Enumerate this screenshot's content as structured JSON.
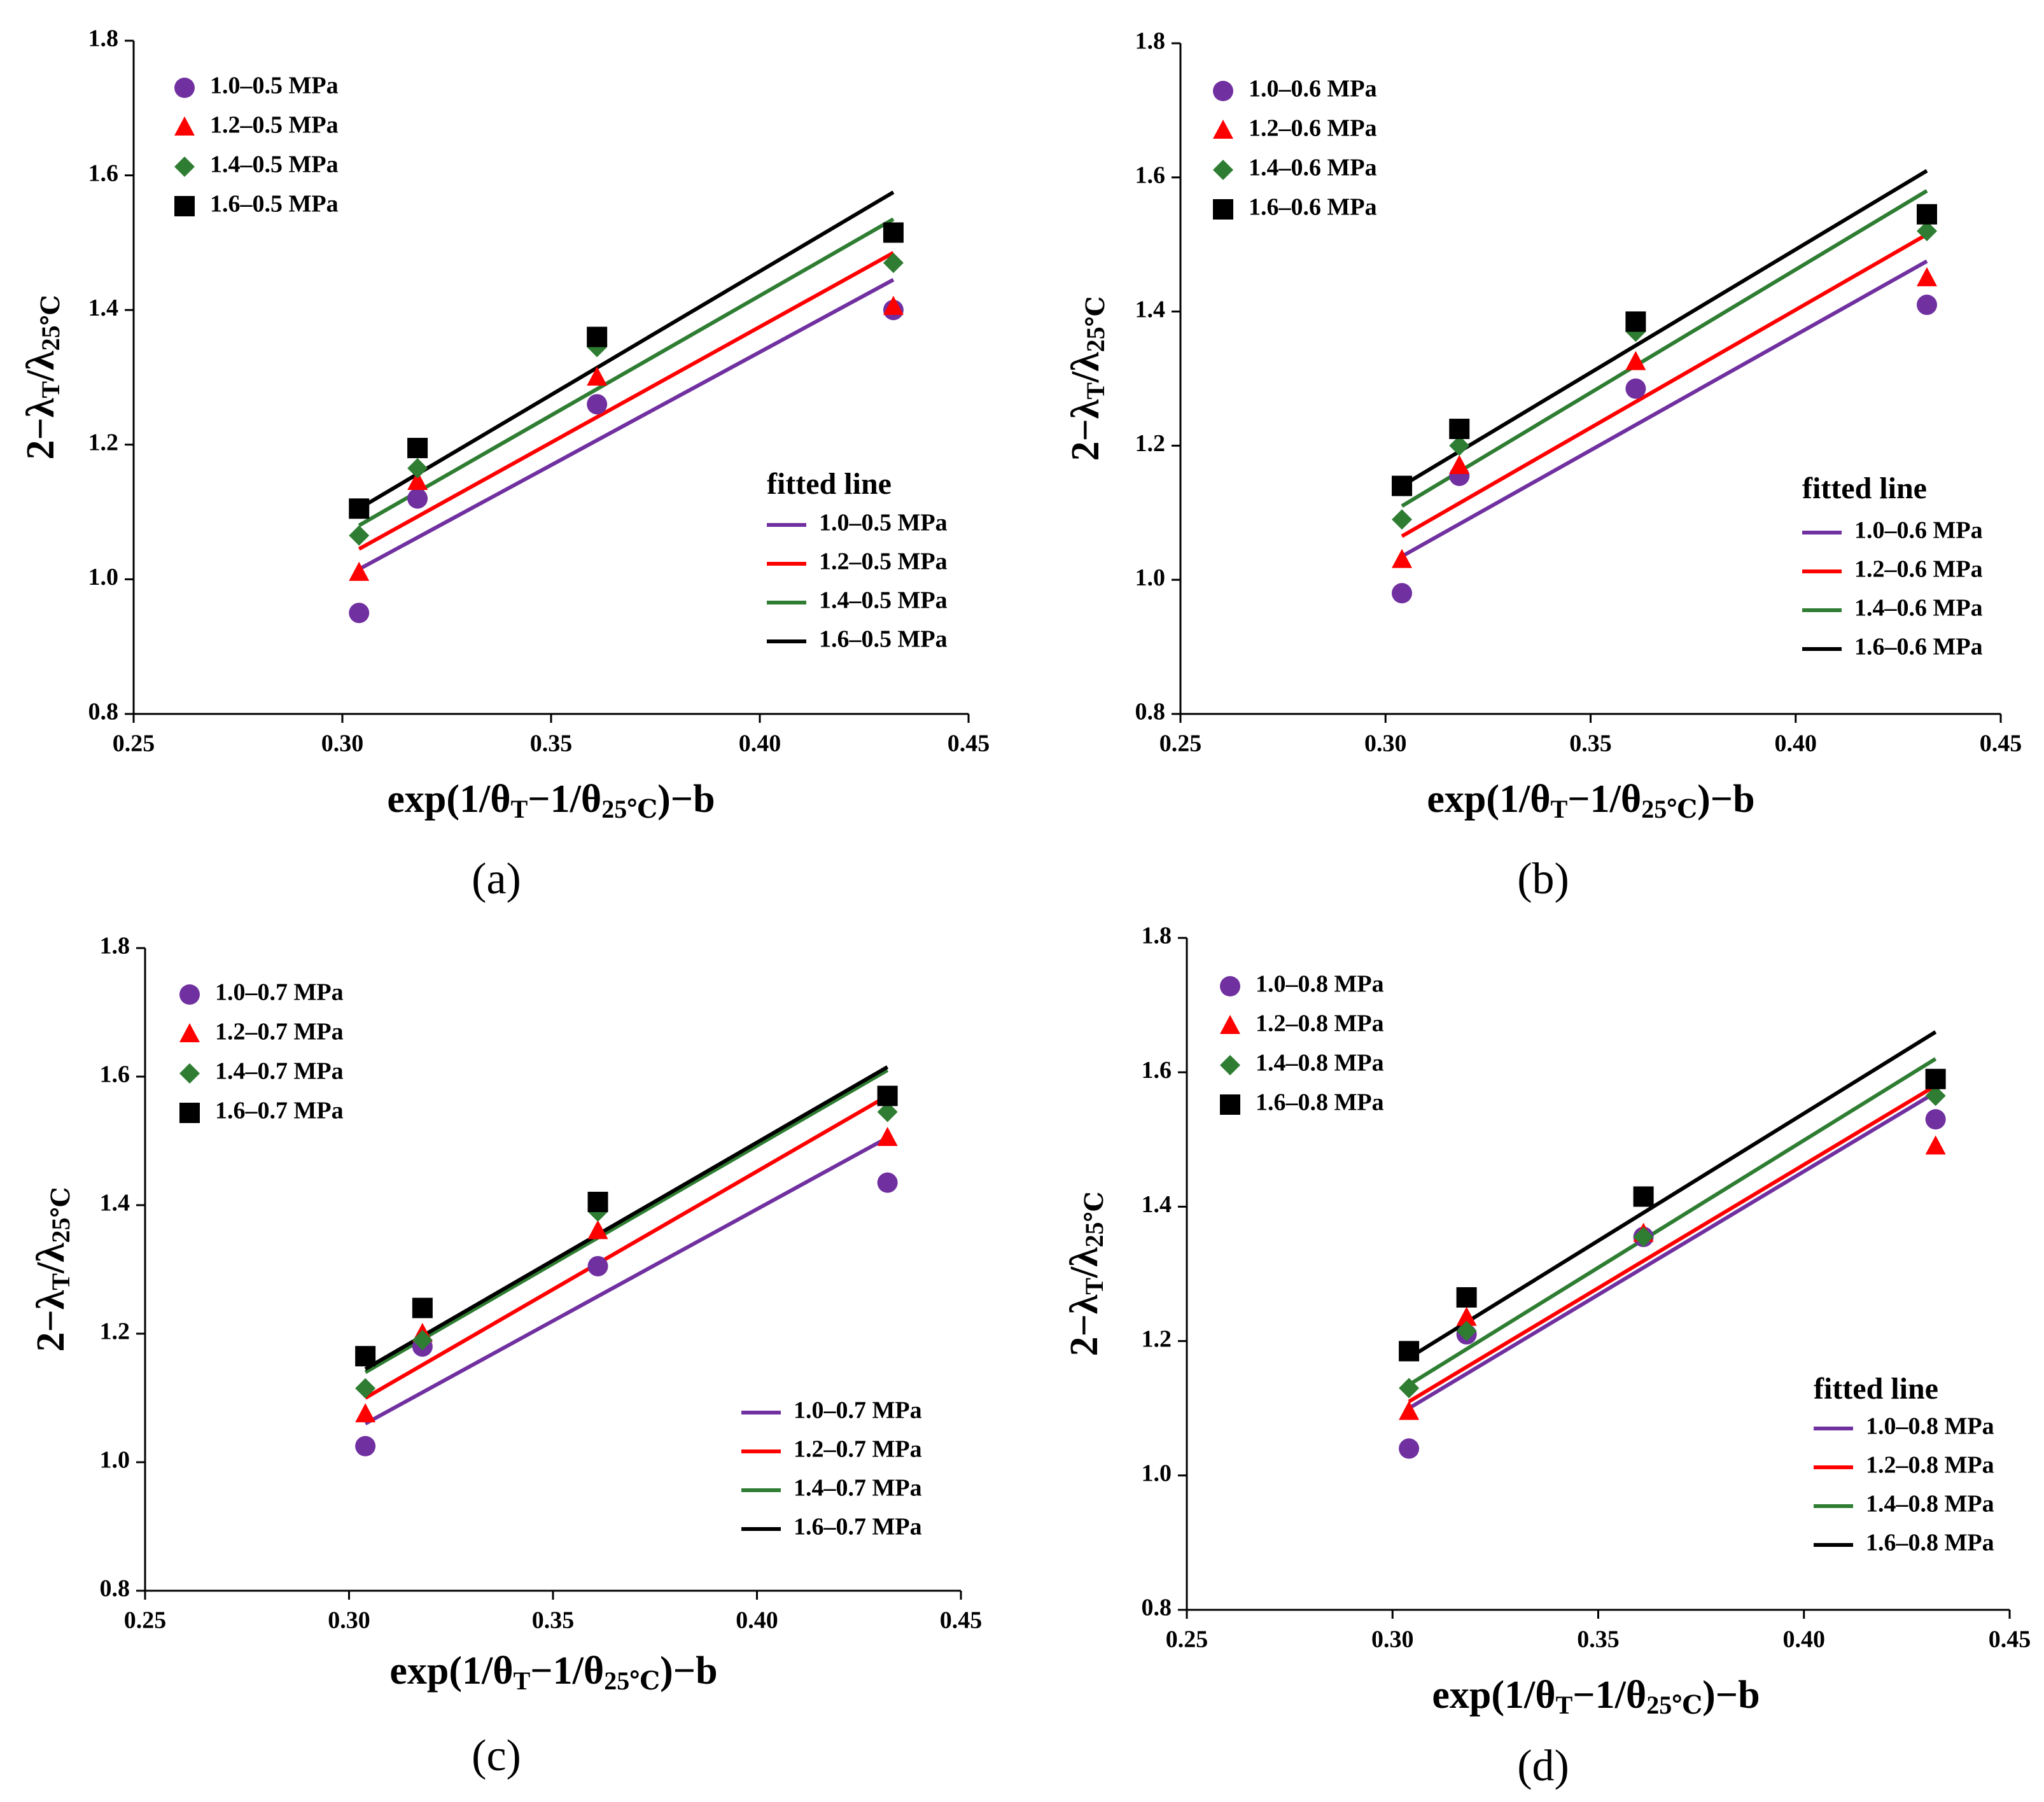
{
  "colors": {
    "purple": "#7030A0",
    "red": "#FF0000",
    "green": "#2E7D32",
    "black": "#000000"
  },
  "axis_text": {
    "y_prefix": "2−λ",
    "y_sub1": "T",
    "y_mid": "/λ",
    "y_sub2": "25℃",
    "x_prefix": "exp(1/θ",
    "x_sub1": "T",
    "x_mid": "−1/θ",
    "x_sub2": "25℃",
    "x_suffix": ")−b"
  },
  "chart_data": [
    {
      "type": "scatter",
      "panel_label": "(a)",
      "xlim": [
        0.25,
        0.45
      ],
      "ylim": [
        0.8,
        1.8
      ],
      "xticks": [
        "0.25",
        "0.30",
        "0.35",
        "0.40",
        "0.45"
      ],
      "yticks": [
        "0.8",
        "1.0",
        "1.2",
        "1.4",
        "1.6",
        "1.8"
      ],
      "x": [
        0.304,
        0.318,
        0.361,
        0.432
      ],
      "fit_title": "fitted line",
      "series": [
        {
          "name": "1.0–0.5 MPa",
          "marker": "circle",
          "color": "#7030A0",
          "values": [
            0.95,
            1.12,
            1.26,
            1.4
          ],
          "fit": [
            [
              0.304,
              1.015
            ],
            [
              0.432,
              1.445
            ]
          ]
        },
        {
          "name": "1.2–0.5 MPa",
          "marker": "triangle",
          "color": "#FF0000",
          "values": [
            1.01,
            1.145,
            1.3,
            1.405
          ],
          "fit": [
            [
              0.304,
              1.045
            ],
            [
              0.432,
              1.485
            ]
          ]
        },
        {
          "name": "1.4–0.5 MPa",
          "marker": "diamond",
          "color": "#2E7D32",
          "values": [
            1.065,
            1.165,
            1.345,
            1.47
          ],
          "fit": [
            [
              0.304,
              1.08
            ],
            [
              0.432,
              1.535
            ]
          ]
        },
        {
          "name": "1.6–0.5 MPa",
          "marker": "square",
          "color": "#000000",
          "values": [
            1.105,
            1.195,
            1.36,
            1.515
          ],
          "fit": [
            [
              0.304,
              1.105
            ],
            [
              0.432,
              1.575
            ]
          ]
        }
      ]
    },
    {
      "type": "scatter",
      "panel_label": "(b)",
      "xlim": [
        0.25,
        0.45
      ],
      "ylim": [
        0.8,
        1.8
      ],
      "xticks": [
        "0.25",
        "0.30",
        "0.35",
        "0.40",
        "0.45"
      ],
      "yticks": [
        "0.8",
        "1.0",
        "1.2",
        "1.4",
        "1.6",
        "1.8"
      ],
      "x": [
        0.304,
        0.318,
        0.361,
        0.432
      ],
      "fit_title": "fitted line",
      "series": [
        {
          "name": "1.0–0.6 MPa",
          "marker": "circle",
          "color": "#7030A0",
          "values": [
            0.98,
            1.155,
            1.285,
            1.41
          ],
          "fit": [
            [
              0.304,
              1.035
            ],
            [
              0.432,
              1.475
            ]
          ]
        },
        {
          "name": "1.2–0.6 MPa",
          "marker": "triangle",
          "color": "#FF0000",
          "values": [
            1.03,
            1.17,
            1.325,
            1.45
          ],
          "fit": [
            [
              0.304,
              1.065
            ],
            [
              0.432,
              1.515
            ]
          ]
        },
        {
          "name": "1.4–0.6 MPa",
          "marker": "diamond",
          "color": "#2E7D32",
          "values": [
            1.09,
            1.2,
            1.37,
            1.52
          ],
          "fit": [
            [
              0.304,
              1.11
            ],
            [
              0.432,
              1.58
            ]
          ]
        },
        {
          "name": "1.6–0.6 MPa",
          "marker": "square",
          "color": "#000000",
          "values": [
            1.14,
            1.225,
            1.385,
            1.545
          ],
          "fit": [
            [
              0.304,
              1.14
            ],
            [
              0.432,
              1.61
            ]
          ]
        }
      ]
    },
    {
      "type": "scatter",
      "panel_label": "(c)",
      "xlim": [
        0.25,
        0.45
      ],
      "ylim": [
        0.8,
        1.8
      ],
      "xticks": [
        "0.25",
        "0.30",
        "0.35",
        "0.40",
        "0.45"
      ],
      "yticks": [
        "0.8",
        "1.0",
        "1.2",
        "1.4",
        "1.6",
        "1.8"
      ],
      "x": [
        0.304,
        0.318,
        0.361,
        0.432
      ],
      "fit_title": "",
      "series": [
        {
          "name": "1.0–0.7 MPa",
          "marker": "circle",
          "color": "#7030A0",
          "values": [
            1.025,
            1.18,
            1.305,
            1.435
          ],
          "fit": [
            [
              0.304,
              1.06
            ],
            [
              0.432,
              1.505
            ]
          ]
        },
        {
          "name": "1.2–0.7 MPa",
          "marker": "triangle",
          "color": "#FF0000",
          "values": [
            1.075,
            1.2,
            1.36,
            1.505
          ],
          "fit": [
            [
              0.304,
              1.1
            ],
            [
              0.432,
              1.57
            ]
          ]
        },
        {
          "name": "1.4–0.7 MPa",
          "marker": "diamond",
          "color": "#2E7D32",
          "values": [
            1.115,
            1.19,
            1.39,
            1.545
          ],
          "fit": [
            [
              0.304,
              1.14
            ],
            [
              0.432,
              1.61
            ]
          ]
        },
        {
          "name": "1.6–0.7 MPa",
          "marker": "square",
          "color": "#000000",
          "values": [
            1.165,
            1.24,
            1.405,
            1.57
          ],
          "fit": [
            [
              0.304,
              1.145
            ],
            [
              0.432,
              1.615
            ]
          ]
        }
      ]
    },
    {
      "type": "scatter",
      "panel_label": "(d)",
      "xlim": [
        0.25,
        0.45
      ],
      "ylim": [
        0.8,
        1.8
      ],
      "xticks": [
        "0.25",
        "0.30",
        "0.35",
        "0.40",
        "0.45"
      ],
      "yticks": [
        "0.8",
        "1.0",
        "1.2",
        "1.4",
        "1.6",
        "1.8"
      ],
      "x": [
        0.304,
        0.318,
        0.361,
        0.432
      ],
      "fit_title": "fitted line",
      "series": [
        {
          "name": "1.0–0.8 MPa",
          "marker": "circle",
          "color": "#7030A0",
          "values": [
            1.04,
            1.21,
            1.355,
            1.53
          ],
          "fit": [
            [
              0.304,
              1.1
            ],
            [
              0.432,
              1.57
            ]
          ]
        },
        {
          "name": "1.2–0.8 MPa",
          "marker": "triangle",
          "color": "#FF0000",
          "values": [
            1.095,
            1.235,
            1.36,
            1.49
          ],
          "fit": [
            [
              0.304,
              1.11
            ],
            [
              0.432,
              1.58
            ]
          ]
        },
        {
          "name": "1.4–0.8 MPa",
          "marker": "diamond",
          "color": "#2E7D32",
          "values": [
            1.13,
            1.215,
            1.355,
            1.565
          ],
          "fit": [
            [
              0.304,
              1.135
            ],
            [
              0.432,
              1.62
            ]
          ]
        },
        {
          "name": "1.6–0.8 MPa",
          "marker": "square",
          "color": "#000000",
          "values": [
            1.185,
            1.265,
            1.415,
            1.59
          ],
          "fit": [
            [
              0.304,
              1.175
            ],
            [
              0.432,
              1.66
            ]
          ]
        }
      ]
    }
  ]
}
